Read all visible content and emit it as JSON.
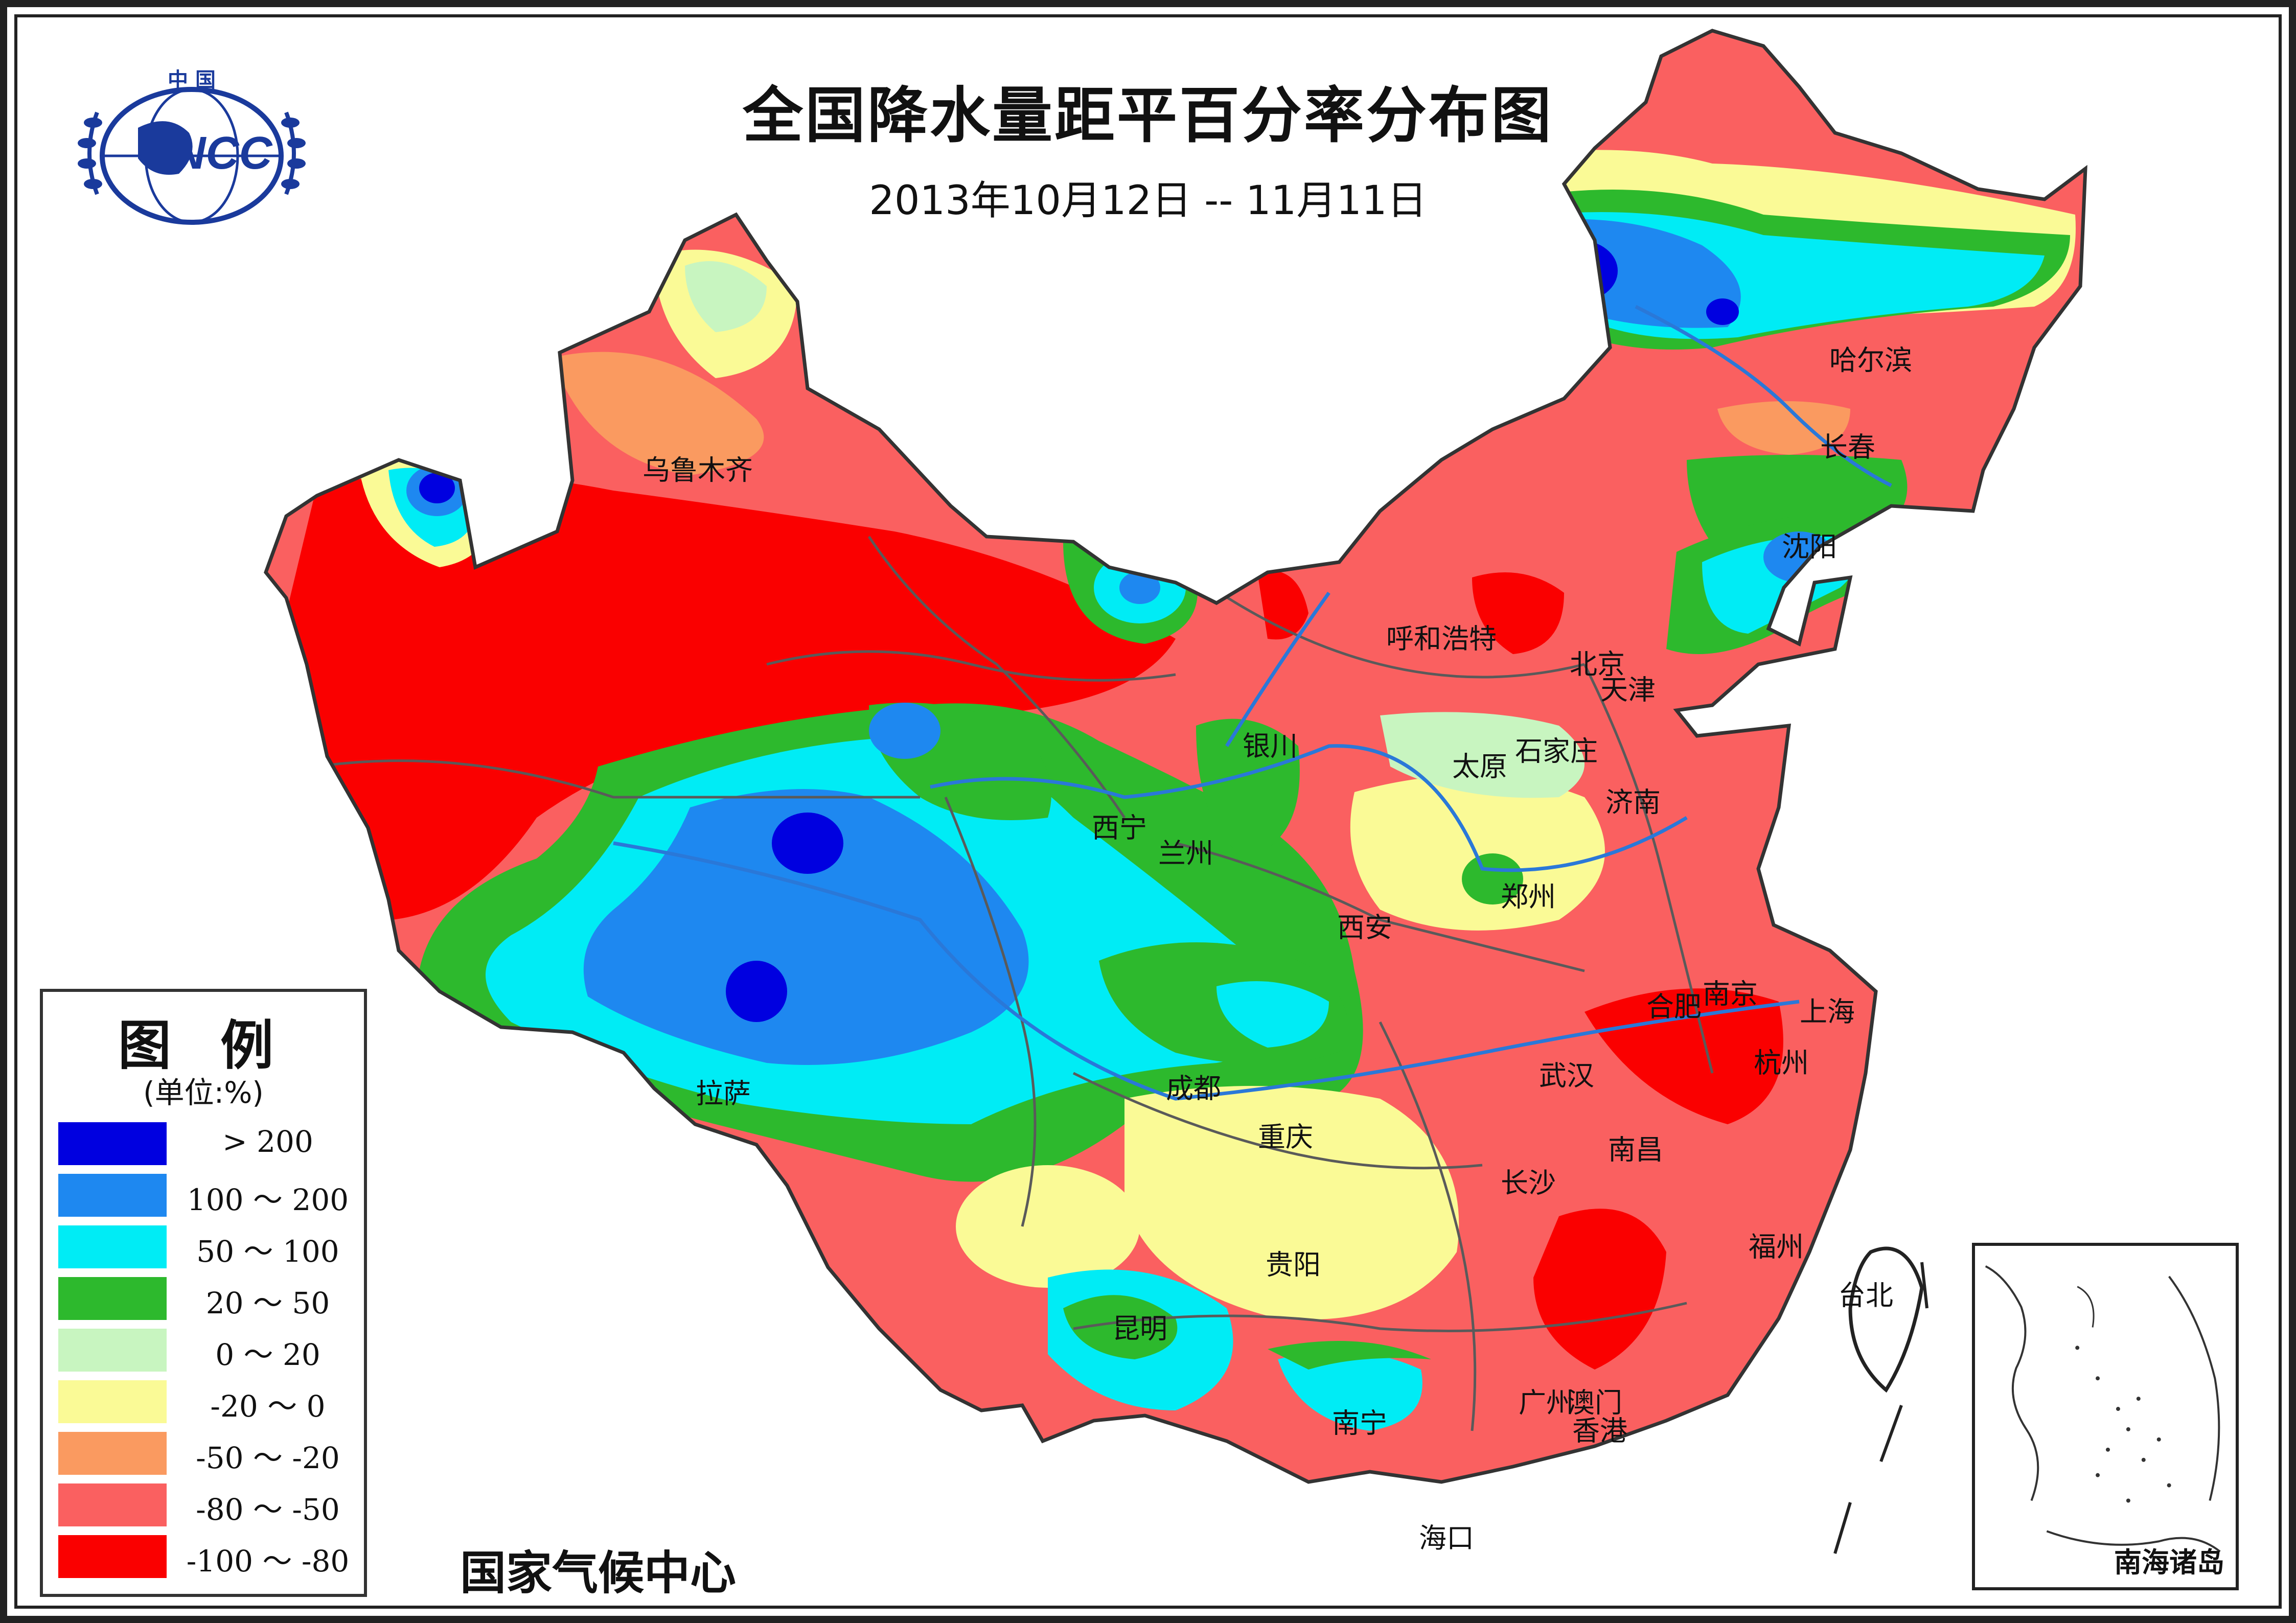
{
  "map": {
    "title": "全国降水量距平百分率分布图",
    "date_range": "2013年10月12日 -- 11月11日",
    "logo": {
      "top_text": "中 国",
      "center_text": "NCC"
    },
    "credit": "国家气候中心",
    "inset_label": "南海诸岛"
  },
  "legend": {
    "title": "图 例",
    "unit": "(单位:%)",
    "items": [
      {
        "label": "> 200",
        "color": "#0000e0"
      },
      {
        "label": "100 ～ 200",
        "color": "#1e88f0"
      },
      {
        "label": "50 ～ 100",
        "color": "#00ecf5"
      },
      {
        "label": "20 ～ 50",
        "color": "#2db92d"
      },
      {
        "label": "0 ～ 20",
        "color": "#c8f5c0"
      },
      {
        "label": "-20 ～ 0",
        "color": "#fafa96"
      },
      {
        "label": "-50 ～ -20",
        "color": "#fa9a60"
      },
      {
        "label": "-80 ～ -50",
        "color": "#fa6060"
      },
      {
        "label": "-100 ～ -80",
        "color": "#fa0000"
      }
    ]
  },
  "cities": [
    {
      "name": "乌鲁木齐"
    },
    {
      "name": "哈尔滨"
    },
    {
      "name": "长春"
    },
    {
      "name": "沈阳"
    },
    {
      "name": "呼和浩特"
    },
    {
      "name": "北京"
    },
    {
      "name": "天津"
    },
    {
      "name": "银川"
    },
    {
      "name": "太原"
    },
    {
      "name": "石家庄"
    },
    {
      "name": "济南"
    },
    {
      "name": "西宁"
    },
    {
      "name": "兰州"
    },
    {
      "name": "郑州"
    },
    {
      "name": "西安"
    },
    {
      "name": "合肥"
    },
    {
      "name": "南京"
    },
    {
      "name": "上海"
    },
    {
      "name": "杭州"
    },
    {
      "name": "武汉"
    },
    {
      "name": "拉萨"
    },
    {
      "name": "成都"
    },
    {
      "name": "重庆"
    },
    {
      "name": "南昌"
    },
    {
      "name": "长沙"
    },
    {
      "name": "福州"
    },
    {
      "name": "贵阳"
    },
    {
      "name": "台北"
    },
    {
      "name": "昆明"
    },
    {
      "name": "南宁"
    },
    {
      "name": "广州"
    },
    {
      "name": "澳门"
    },
    {
      "name": "香港"
    },
    {
      "name": "海口"
    }
  ]
}
